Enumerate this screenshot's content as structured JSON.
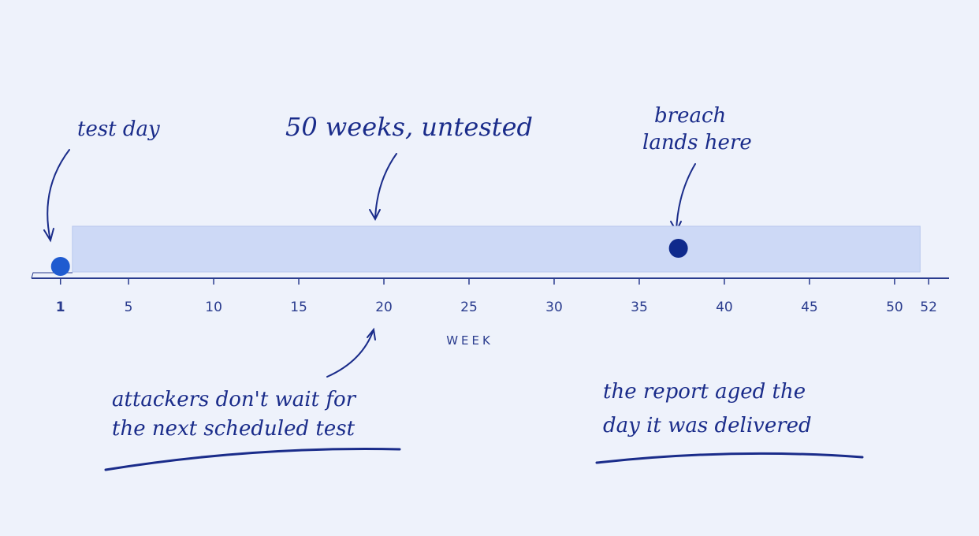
{
  "chart_data": {
    "type": "timeline",
    "xlabel": "WEEK",
    "xlim": [
      -0.7,
      53.2
    ],
    "xticks": [
      1,
      5,
      10,
      15,
      20,
      25,
      30,
      35,
      40,
      45,
      50,
      52
    ],
    "band": {
      "x": [
        1.7,
        51.5
      ],
      "color": "#cdd9f6"
    },
    "markers": [
      {
        "x": 1,
        "color": "#1f5bd0"
      },
      {
        "x": 37.3,
        "color": "#0f2a8c"
      }
    ],
    "annotations": [
      "test day",
      "50 weeks, untested",
      "breach",
      "lands here",
      "attackers don't wait for",
      "the next scheduled test",
      "the report aged the",
      "day it was delivered"
    ]
  }
}
